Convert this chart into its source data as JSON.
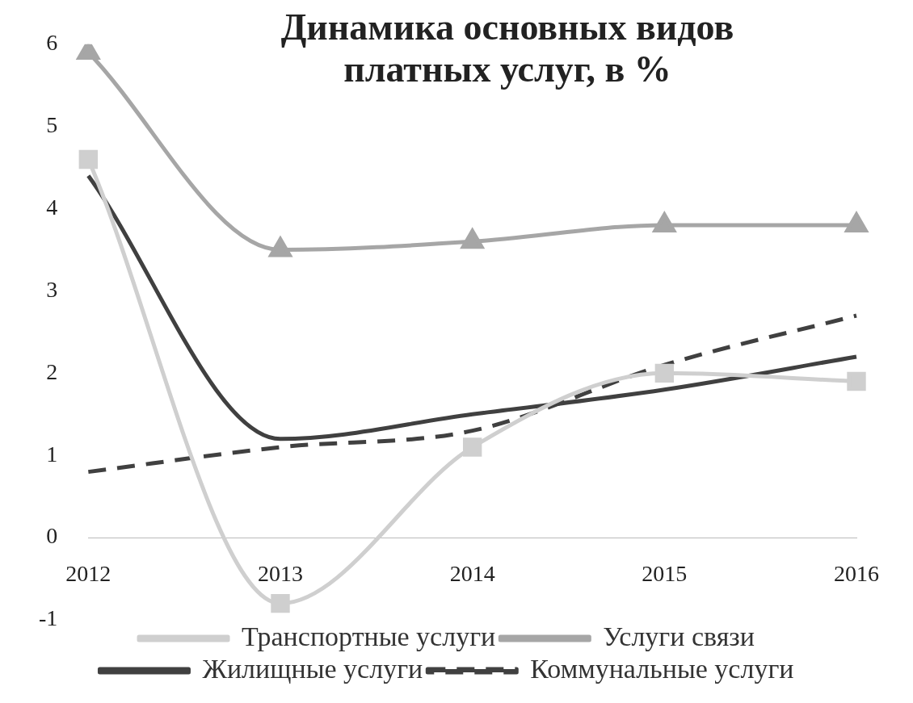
{
  "chart_data": {
    "type": "line",
    "title": "Динамика основных видов платных услуг, в %",
    "categories": [
      "2012",
      "2013",
      "2014",
      "2015",
      "2016"
    ],
    "series": [
      {
        "name": "Транспортные услуги",
        "color": "#cfcfcf",
        "marker": "square",
        "values": [
          4.6,
          -0.8,
          1.1,
          2.0,
          1.9
        ]
      },
      {
        "name": "Услуги связи",
        "color": "#a6a6a6",
        "marker": "triangle",
        "values": [
          5.9,
          3.5,
          3.6,
          3.8,
          3.8
        ]
      },
      {
        "name": "Жилищные услуги",
        "color": "#404040",
        "marker": "none",
        "values": [
          4.4,
          1.2,
          1.5,
          1.8,
          2.2
        ]
      },
      {
        "name": "Коммунальные услуги",
        "color": "#404040",
        "marker": "none",
        "line_style": "dashed",
        "values": [
          0.8,
          1.1,
          1.3,
          2.1,
          2.7
        ]
      }
    ],
    "ylim": [
      -1,
      6
    ],
    "yticks": [
      -1,
      0,
      1,
      2,
      3,
      4,
      5,
      6
    ],
    "grid": false,
    "legend": "bottom"
  }
}
